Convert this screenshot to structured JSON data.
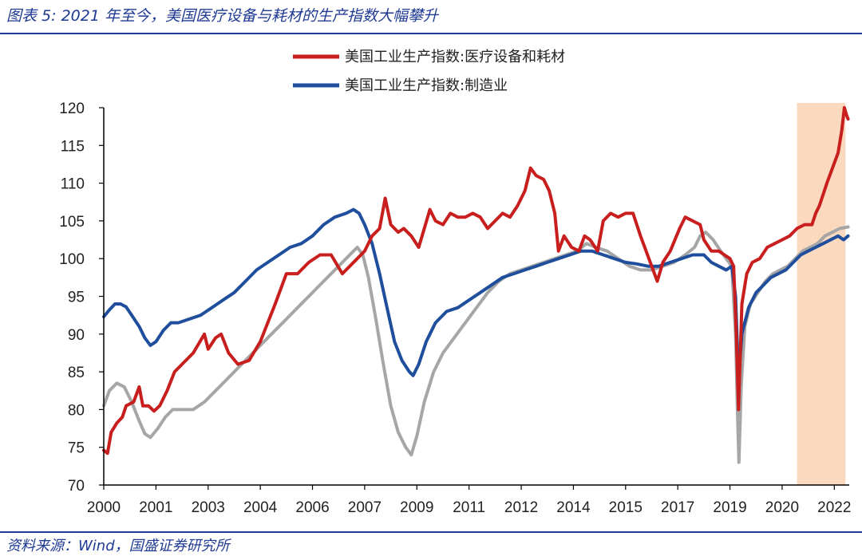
{
  "caption": "图表 5:  2021 年至今，美国医疗设备与耗材的生产指数大幅攀升",
  "source": "资料来源：Wind，国盛证券研究所",
  "colors": {
    "medical": "#c81e1e",
    "manufacturing": "#1f4e9c",
    "third": "#a6a6a6",
    "highlight": "#fbd9bf",
    "axis": "#000000",
    "rule": "#1f3a93"
  },
  "chart_data": {
    "type": "line",
    "x_tick_labels": [
      "2000",
      "2001",
      "2003",
      "2004",
      "2006",
      "2007",
      "2009",
      "2011",
      "2012",
      "2014",
      "2015",
      "2017",
      "2019",
      "2020",
      "2022"
    ],
    "x_tick_years": [
      2000.0,
      2001.4,
      2002.8,
      2004.2,
      2005.6,
      2007.0,
      2008.4,
      2009.8,
      2011.2,
      2012.6,
      2014.0,
      2015.4,
      2016.8,
      2018.2,
      2019.6
    ],
    "xlim": [
      2000.0,
      2020.0
    ],
    "ylim": [
      70,
      120
    ],
    "y_ticks": [
      70,
      75,
      80,
      85,
      90,
      95,
      100,
      105,
      110,
      115,
      120
    ],
    "highlight_band": [
      2018.6,
      2019.9
    ],
    "grid": false,
    "legend_position": "top",
    "series": [
      {
        "name": "美国工业生产指数:医疗设备和耗材",
        "color_key": "medical",
        "points": [
          [
            2000.0,
            74.6
          ],
          [
            2000.1,
            74.2
          ],
          [
            2000.2,
            77.0
          ],
          [
            2000.35,
            78.2
          ],
          [
            2000.5,
            79.0
          ],
          [
            2000.6,
            80.5
          ],
          [
            2000.8,
            81.0
          ],
          [
            2000.95,
            83.0
          ],
          [
            2001.05,
            80.5
          ],
          [
            2001.2,
            80.5
          ],
          [
            2001.35,
            79.8
          ],
          [
            2001.5,
            80.5
          ],
          [
            2001.7,
            82.5
          ],
          [
            2001.9,
            85.0
          ],
          [
            2002.1,
            86.0
          ],
          [
            2002.4,
            87.5
          ],
          [
            2002.7,
            90.0
          ],
          [
            2002.8,
            88.0
          ],
          [
            2003.0,
            89.5
          ],
          [
            2003.15,
            90.0
          ],
          [
            2003.35,
            87.5
          ],
          [
            2003.6,
            86.0
          ],
          [
            2003.9,
            86.5
          ],
          [
            2004.2,
            89.0
          ],
          [
            2004.6,
            94.0
          ],
          [
            2004.9,
            98.0
          ],
          [
            2005.2,
            98.0
          ],
          [
            2005.5,
            99.5
          ],
          [
            2005.8,
            100.5
          ],
          [
            2006.1,
            100.5
          ],
          [
            2006.4,
            98.0
          ],
          [
            2006.6,
            99.0
          ],
          [
            2006.8,
            100.0
          ],
          [
            2007.0,
            101.0
          ],
          [
            2007.2,
            103.0
          ],
          [
            2007.4,
            104.0
          ],
          [
            2007.55,
            108.0
          ],
          [
            2007.7,
            104.5
          ],
          [
            2007.9,
            103.5
          ],
          [
            2008.05,
            104.0
          ],
          [
            2008.25,
            103.0
          ],
          [
            2008.45,
            101.5
          ],
          [
            2008.6,
            104.0
          ],
          [
            2008.75,
            106.5
          ],
          [
            2008.9,
            105.0
          ],
          [
            2009.1,
            104.5
          ],
          [
            2009.3,
            106.0
          ],
          [
            2009.5,
            105.5
          ],
          [
            2009.7,
            105.5
          ],
          [
            2009.9,
            106.0
          ],
          [
            2010.1,
            105.5
          ],
          [
            2010.3,
            104.0
          ],
          [
            2010.5,
            105.0
          ],
          [
            2010.7,
            106.0
          ],
          [
            2010.9,
            105.5
          ],
          [
            2011.1,
            107.0
          ],
          [
            2011.3,
            109.0
          ],
          [
            2011.45,
            112.0
          ],
          [
            2011.6,
            111.0
          ],
          [
            2011.8,
            110.5
          ],
          [
            2011.95,
            109.0
          ],
          [
            2012.1,
            106.0
          ],
          [
            2012.2,
            101.0
          ],
          [
            2012.35,
            103.0
          ],
          [
            2012.55,
            101.5
          ],
          [
            2012.75,
            101.0
          ],
          [
            2012.9,
            103.0
          ],
          [
            2013.05,
            102.5
          ],
          [
            2013.25,
            101.0
          ],
          [
            2013.4,
            105.0
          ],
          [
            2013.6,
            106.0
          ],
          [
            2013.8,
            105.5
          ],
          [
            2014.0,
            106.0
          ],
          [
            2014.2,
            106.0
          ],
          [
            2014.4,
            103.0
          ],
          [
            2014.55,
            101.0
          ],
          [
            2014.7,
            99.0
          ],
          [
            2014.85,
            97.0
          ],
          [
            2015.0,
            99.5
          ],
          [
            2015.2,
            101.0
          ],
          [
            2015.45,
            104.0
          ],
          [
            2015.6,
            105.5
          ],
          [
            2015.8,
            105.0
          ],
          [
            2016.0,
            104.5
          ],
          [
            2016.1,
            102.5
          ],
          [
            2016.3,
            101.0
          ],
          [
            2016.5,
            101.0
          ],
          [
            2016.65,
            100.5
          ],
          [
            2016.8,
            100.0
          ],
          [
            2016.9,
            99.0
          ],
          [
            2016.97,
            90.0
          ],
          [
            2017.03,
            80.0
          ],
          [
            2017.12,
            94.0
          ],
          [
            2017.25,
            98.0
          ],
          [
            2017.4,
            99.5
          ],
          [
            2017.6,
            100.0
          ],
          [
            2017.8,
            101.5
          ],
          [
            2018.0,
            102.0
          ],
          [
            2018.2,
            102.5
          ],
          [
            2018.4,
            103.0
          ],
          [
            2018.6,
            104.0
          ],
          [
            2018.8,
            104.5
          ],
          [
            2019.0,
            104.5
          ],
          [
            2019.1,
            106.0
          ],
          [
            2019.2,
            107.0
          ],
          [
            2019.4,
            110.0
          ],
          [
            2019.55,
            112.0
          ],
          [
            2019.7,
            114.0
          ],
          [
            2019.8,
            117.0
          ],
          [
            2019.87,
            120.0
          ],
          [
            2019.93,
            119.0
          ],
          [
            2019.97,
            118.5
          ]
        ]
      },
      {
        "name": "美国工业生产指数:制造业",
        "color_key": "manufacturing",
        "points": [
          [
            2000.0,
            92.3
          ],
          [
            2000.15,
            93.2
          ],
          [
            2000.3,
            94.0
          ],
          [
            2000.45,
            94.0
          ],
          [
            2000.6,
            93.6
          ],
          [
            2000.75,
            92.5
          ],
          [
            2000.95,
            91.0
          ],
          [
            2001.1,
            89.5
          ],
          [
            2001.25,
            88.5
          ],
          [
            2001.4,
            89.0
          ],
          [
            2001.6,
            90.5
          ],
          [
            2001.8,
            91.5
          ],
          [
            2002.0,
            91.5
          ],
          [
            2002.3,
            92.0
          ],
          [
            2002.6,
            92.5
          ],
          [
            2002.9,
            93.5
          ],
          [
            2003.2,
            94.5
          ],
          [
            2003.5,
            95.5
          ],
          [
            2003.8,
            97.0
          ],
          [
            2004.1,
            98.5
          ],
          [
            2004.4,
            99.5
          ],
          [
            2004.7,
            100.5
          ],
          [
            2005.0,
            101.5
          ],
          [
            2005.3,
            102.0
          ],
          [
            2005.6,
            103.0
          ],
          [
            2005.9,
            104.5
          ],
          [
            2006.2,
            105.5
          ],
          [
            2006.5,
            106.0
          ],
          [
            2006.7,
            106.5
          ],
          [
            2006.85,
            106.0
          ],
          [
            2007.0,
            104.5
          ],
          [
            2007.2,
            102.0
          ],
          [
            2007.4,
            98.0
          ],
          [
            2007.6,
            93.5
          ],
          [
            2007.8,
            89.0
          ],
          [
            2008.0,
            86.5
          ],
          [
            2008.2,
            85.0
          ],
          [
            2008.3,
            84.5
          ],
          [
            2008.45,
            86.0
          ],
          [
            2008.65,
            89.0
          ],
          [
            2008.9,
            91.5
          ],
          [
            2009.2,
            93.0
          ],
          [
            2009.5,
            93.5
          ],
          [
            2009.8,
            94.5
          ],
          [
            2010.1,
            95.5
          ],
          [
            2010.4,
            96.5
          ],
          [
            2010.7,
            97.5
          ],
          [
            2011.0,
            98.0
          ],
          [
            2011.3,
            98.5
          ],
          [
            2011.6,
            99.0
          ],
          [
            2011.9,
            99.5
          ],
          [
            2012.2,
            100.0
          ],
          [
            2012.5,
            100.5
          ],
          [
            2012.8,
            101.0
          ],
          [
            2013.1,
            101.0
          ],
          [
            2013.4,
            100.5
          ],
          [
            2013.7,
            100.0
          ],
          [
            2014.0,
            99.5
          ],
          [
            2014.3,
            99.3
          ],
          [
            2014.6,
            99.0
          ],
          [
            2014.9,
            99.0
          ],
          [
            2015.2,
            99.5
          ],
          [
            2015.5,
            100.0
          ],
          [
            2015.8,
            100.5
          ],
          [
            2016.1,
            100.5
          ],
          [
            2016.3,
            99.5
          ],
          [
            2016.5,
            99.0
          ],
          [
            2016.7,
            98.5
          ],
          [
            2016.85,
            99.0
          ],
          [
            2016.95,
            95.0
          ],
          [
            2017.03,
            84.0
          ],
          [
            2017.12,
            90.0
          ],
          [
            2017.3,
            93.5
          ],
          [
            2017.5,
            95.5
          ],
          [
            2017.7,
            96.5
          ],
          [
            2017.9,
            97.5
          ],
          [
            2018.1,
            98.0
          ],
          [
            2018.3,
            98.5
          ],
          [
            2018.5,
            99.5
          ],
          [
            2018.7,
            100.5
          ],
          [
            2018.9,
            101.0
          ],
          [
            2019.1,
            101.5
          ],
          [
            2019.3,
            102.0
          ],
          [
            2019.5,
            102.5
          ],
          [
            2019.7,
            103.0
          ],
          [
            2019.85,
            102.5
          ],
          [
            2019.97,
            103.0
          ]
        ]
      },
      {
        "name": "",
        "color_key": "third",
        "points": [
          [
            2000.0,
            80.5
          ],
          [
            2000.15,
            82.5
          ],
          [
            2000.35,
            83.5
          ],
          [
            2000.55,
            83.0
          ],
          [
            2000.75,
            81.0
          ],
          [
            2000.95,
            78.5
          ],
          [
            2001.1,
            76.8
          ],
          [
            2001.25,
            76.3
          ],
          [
            2001.45,
            77.5
          ],
          [
            2001.65,
            79.0
          ],
          [
            2001.85,
            80.0
          ],
          [
            2002.1,
            80.0
          ],
          [
            2002.4,
            80.0
          ],
          [
            2002.7,
            81.0
          ],
          [
            2003.0,
            82.5
          ],
          [
            2003.3,
            84.0
          ],
          [
            2003.6,
            85.5
          ],
          [
            2003.9,
            87.0
          ],
          [
            2004.2,
            88.5
          ],
          [
            2004.5,
            90.0
          ],
          [
            2004.8,
            91.5
          ],
          [
            2005.1,
            93.0
          ],
          [
            2005.4,
            94.5
          ],
          [
            2005.7,
            96.0
          ],
          [
            2006.0,
            97.5
          ],
          [
            2006.3,
            99.0
          ],
          [
            2006.6,
            100.5
          ],
          [
            2006.8,
            101.5
          ],
          [
            2006.95,
            100.5
          ],
          [
            2007.1,
            97.5
          ],
          [
            2007.3,
            92.0
          ],
          [
            2007.5,
            86.0
          ],
          [
            2007.7,
            80.5
          ],
          [
            2007.9,
            77.0
          ],
          [
            2008.1,
            75.0
          ],
          [
            2008.25,
            74.0
          ],
          [
            2008.4,
            76.5
          ],
          [
            2008.6,
            81.0
          ],
          [
            2008.85,
            85.0
          ],
          [
            2009.1,
            87.5
          ],
          [
            2009.4,
            89.5
          ],
          [
            2009.7,
            91.5
          ],
          [
            2010.0,
            93.5
          ],
          [
            2010.3,
            95.5
          ],
          [
            2010.6,
            97.0
          ],
          [
            2010.9,
            98.0
          ],
          [
            2011.2,
            98.5
          ],
          [
            2011.5,
            99.0
          ],
          [
            2011.8,
            99.5
          ],
          [
            2012.1,
            100.0
          ],
          [
            2012.4,
            100.5
          ],
          [
            2012.7,
            101.0
          ],
          [
            2012.95,
            102.0
          ],
          [
            2013.2,
            101.5
          ],
          [
            2013.5,
            101.0
          ],
          [
            2013.8,
            100.0
          ],
          [
            2014.1,
            99.0
          ],
          [
            2014.4,
            98.5
          ],
          [
            2014.7,
            98.5
          ],
          [
            2015.0,
            99.0
          ],
          [
            2015.3,
            99.5
          ],
          [
            2015.6,
            100.5
          ],
          [
            2015.85,
            101.5
          ],
          [
            2016.0,
            103.0
          ],
          [
            2016.15,
            103.5
          ],
          [
            2016.35,
            102.5
          ],
          [
            2016.55,
            101.0
          ],
          [
            2016.7,
            100.0
          ],
          [
            2016.85,
            99.0
          ],
          [
            2016.95,
            90.0
          ],
          [
            2017.0,
            80.0
          ],
          [
            2017.04,
            73.0
          ],
          [
            2017.1,
            83.0
          ],
          [
            2017.2,
            91.0
          ],
          [
            2017.35,
            94.0
          ],
          [
            2017.55,
            95.5
          ],
          [
            2017.75,
            97.0
          ],
          [
            2017.95,
            98.0
          ],
          [
            2018.15,
            98.5
          ],
          [
            2018.35,
            99.0
          ],
          [
            2018.55,
            100.0
          ],
          [
            2018.75,
            101.0
          ],
          [
            2018.95,
            101.5
          ],
          [
            2019.15,
            102.0
          ],
          [
            2019.35,
            103.0
          ],
          [
            2019.55,
            103.5
          ],
          [
            2019.75,
            104.0
          ],
          [
            2019.97,
            104.2
          ]
        ]
      }
    ]
  }
}
